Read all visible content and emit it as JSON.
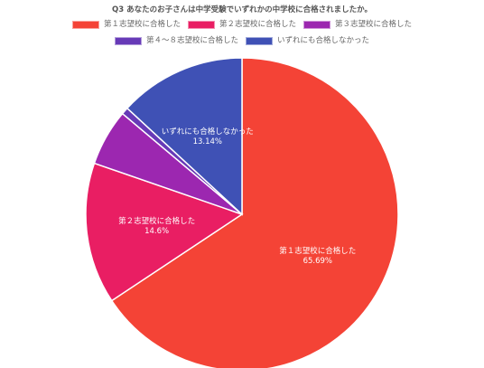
{
  "chart_data": {
    "type": "pie",
    "title": "Q3 あなたのお子さんは中学受験でいずれかの中学校に合格されましたか。",
    "categories": [
      "第１志望校に合格した",
      "第２志望校に合格した",
      "第３志望校に合格した",
      "第４～８志望校に合格した",
      "いずれにも合格しなかった"
    ],
    "values": [
      65.69,
      14.6,
      5.84,
      0.73,
      13.14
    ],
    "value_labels": [
      "65.69%",
      "14.6%",
      "",
      "",
      "13.14%"
    ],
    "colors": [
      "#f44336",
      "#e91e63",
      "#9c27b0",
      "#673ab7",
      "#3f51b5"
    ],
    "legend_position": "top",
    "start_angle_deg": 0,
    "direction": "clockwise"
  }
}
